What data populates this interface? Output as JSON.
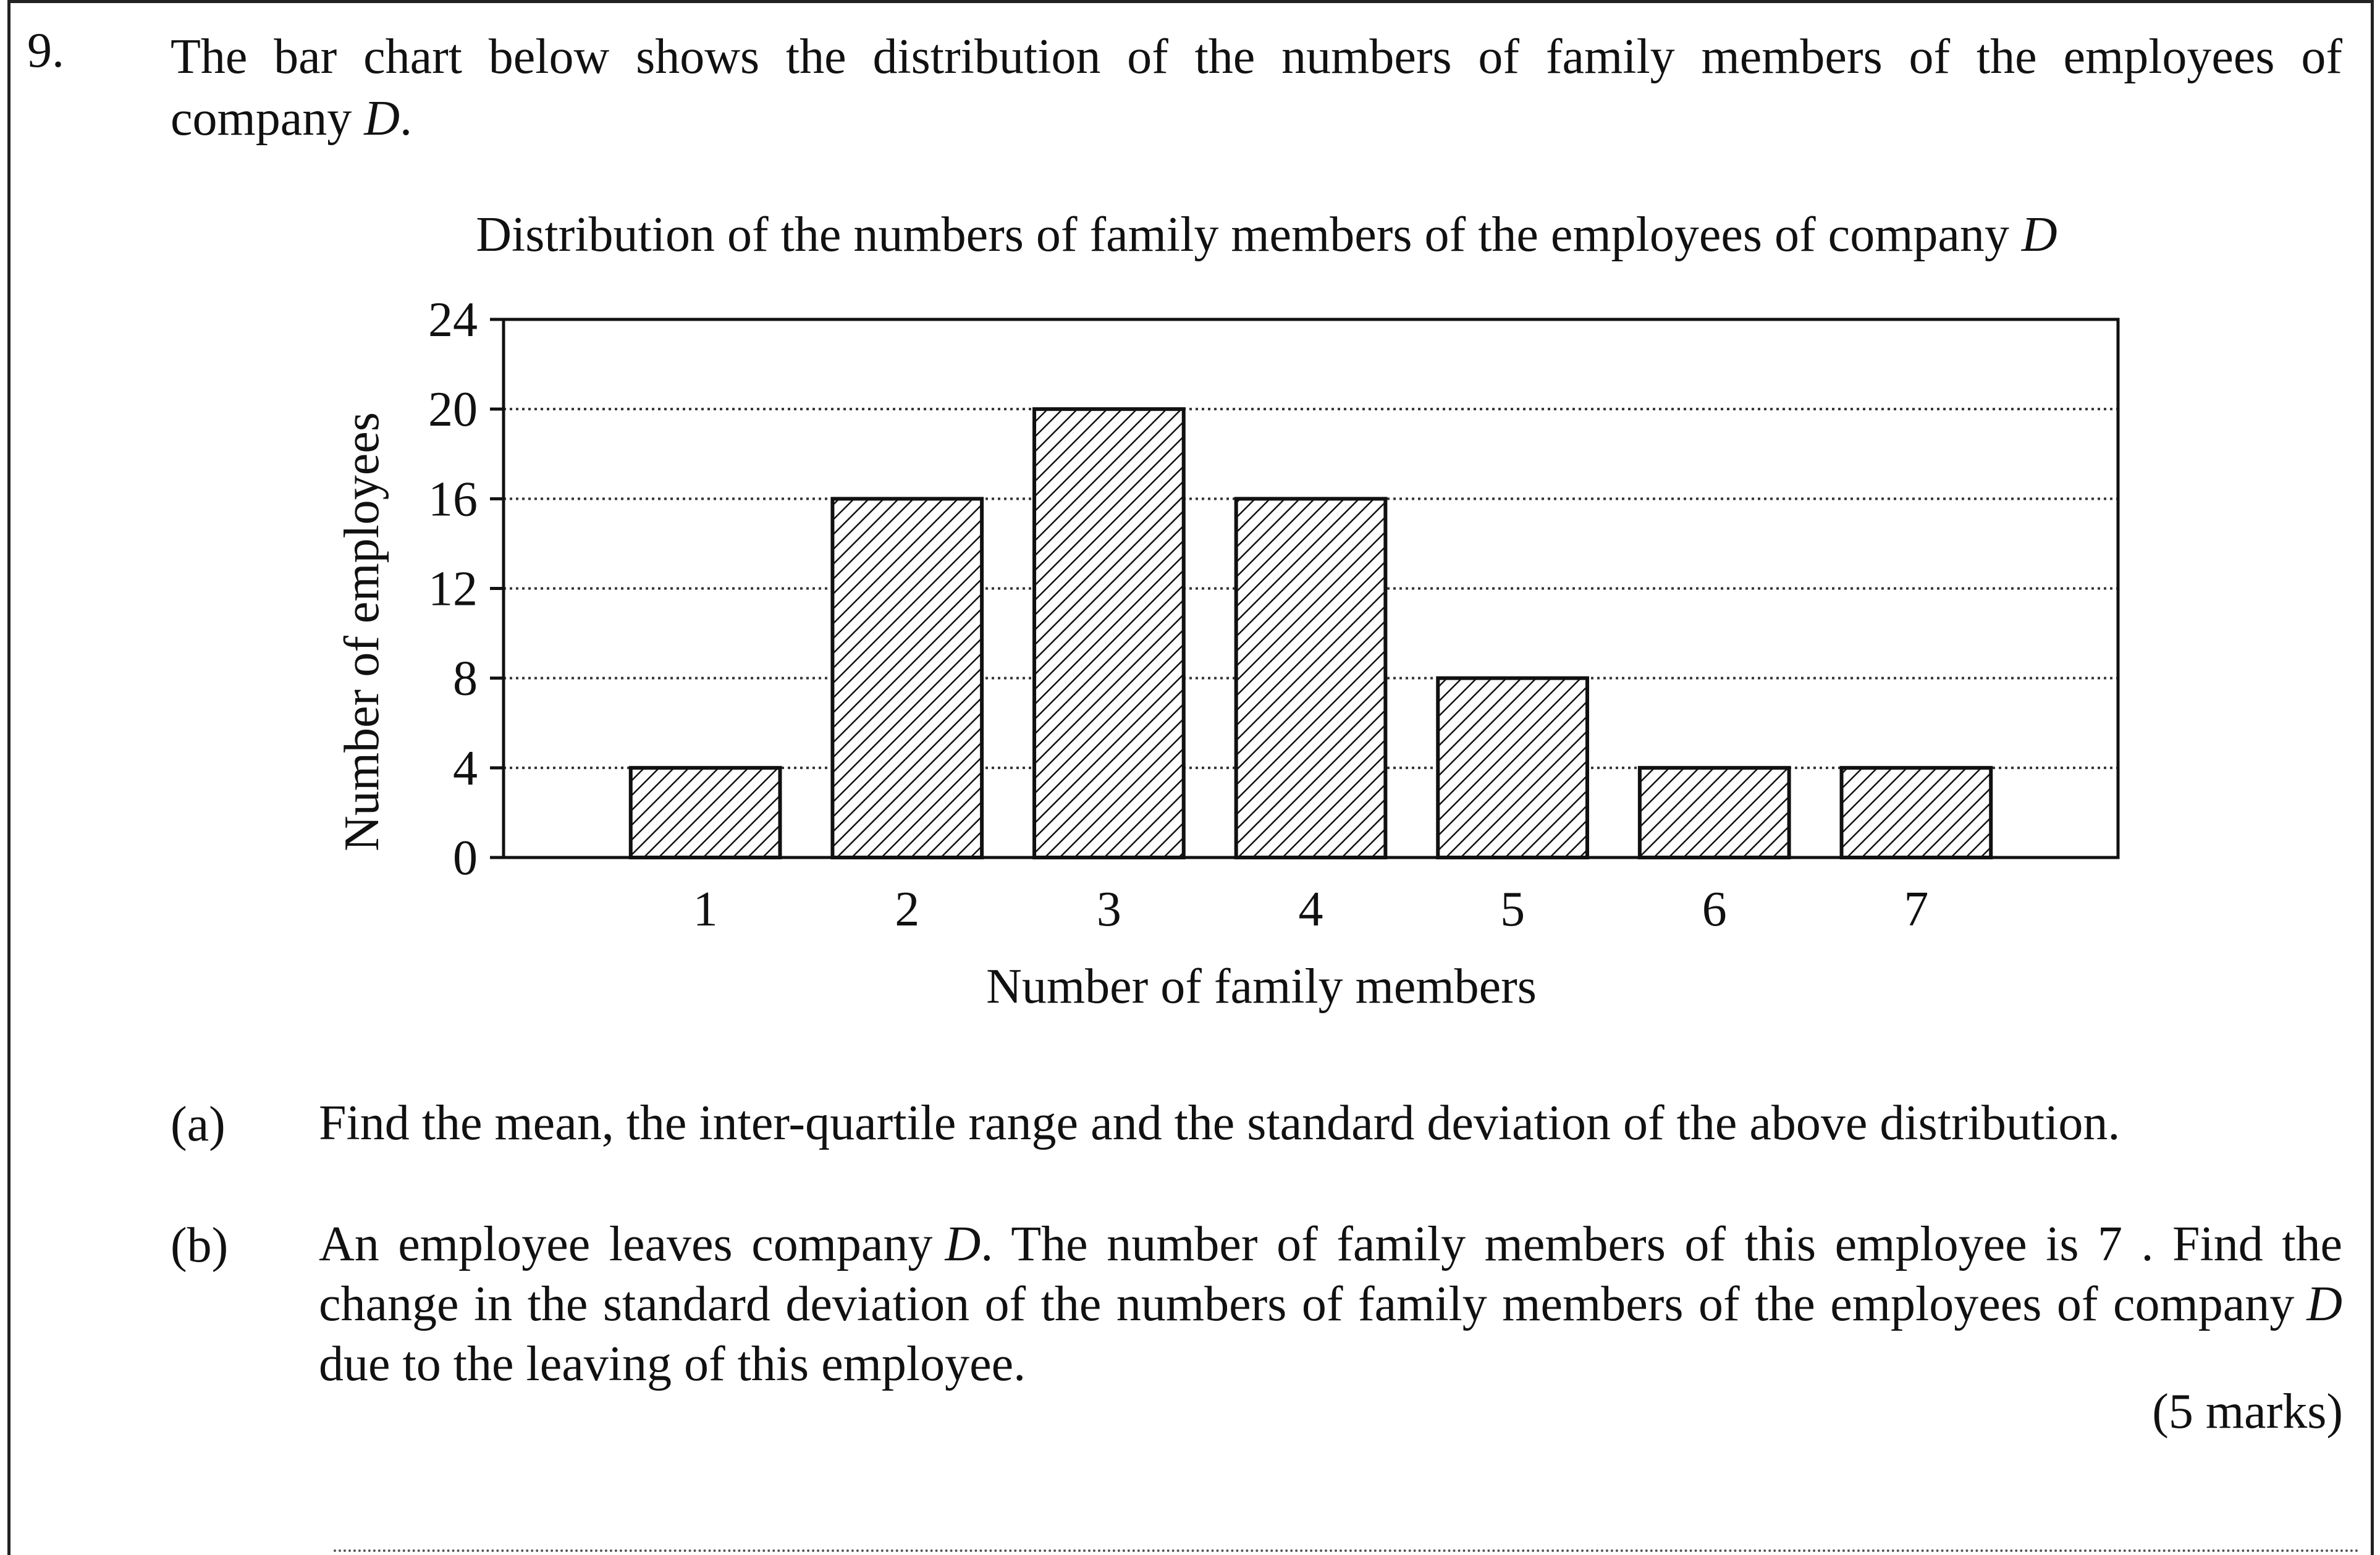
{
  "question": {
    "number": "9.",
    "intro_text": "The bar chart below shows the distribution of the numbers of family members of the employees of company",
    "intro_var": "D",
    "intro_end": ".",
    "parts": [
      {
        "label": "(a)",
        "text": "Find the mean, the inter-quartile range and the standard deviation of the above distribution."
      },
      {
        "label": "(b)",
        "text_1": "An employee leaves company",
        "var": "D",
        "text_2": ". The number of family members of this employee is 7 . Find the change in the standard deviation of the numbers of family members of the employees of company",
        "var_2": "D",
        "text_3": "due to the leaving of this employee."
      }
    ],
    "marks": "(5 marks)"
  },
  "chart_data": {
    "type": "bar",
    "title": "Distribution of the numbers of family members of the employees of company",
    "title_var": "D",
    "xlabel": "Number of family members",
    "ylabel": "Number of employees",
    "categories": [
      "1",
      "2",
      "3",
      "4",
      "5",
      "6",
      "7"
    ],
    "values": [
      4,
      16,
      20,
      16,
      8,
      4,
      4
    ],
    "ylim": [
      0,
      24
    ],
    "yticks": [
      0,
      4,
      8,
      12,
      16,
      20,
      24
    ],
    "grid": "horizontal dotted",
    "bar_fill": "diagonal hatch",
    "colors": {
      "ink": "#111111",
      "background": "#ffffff"
    }
  }
}
